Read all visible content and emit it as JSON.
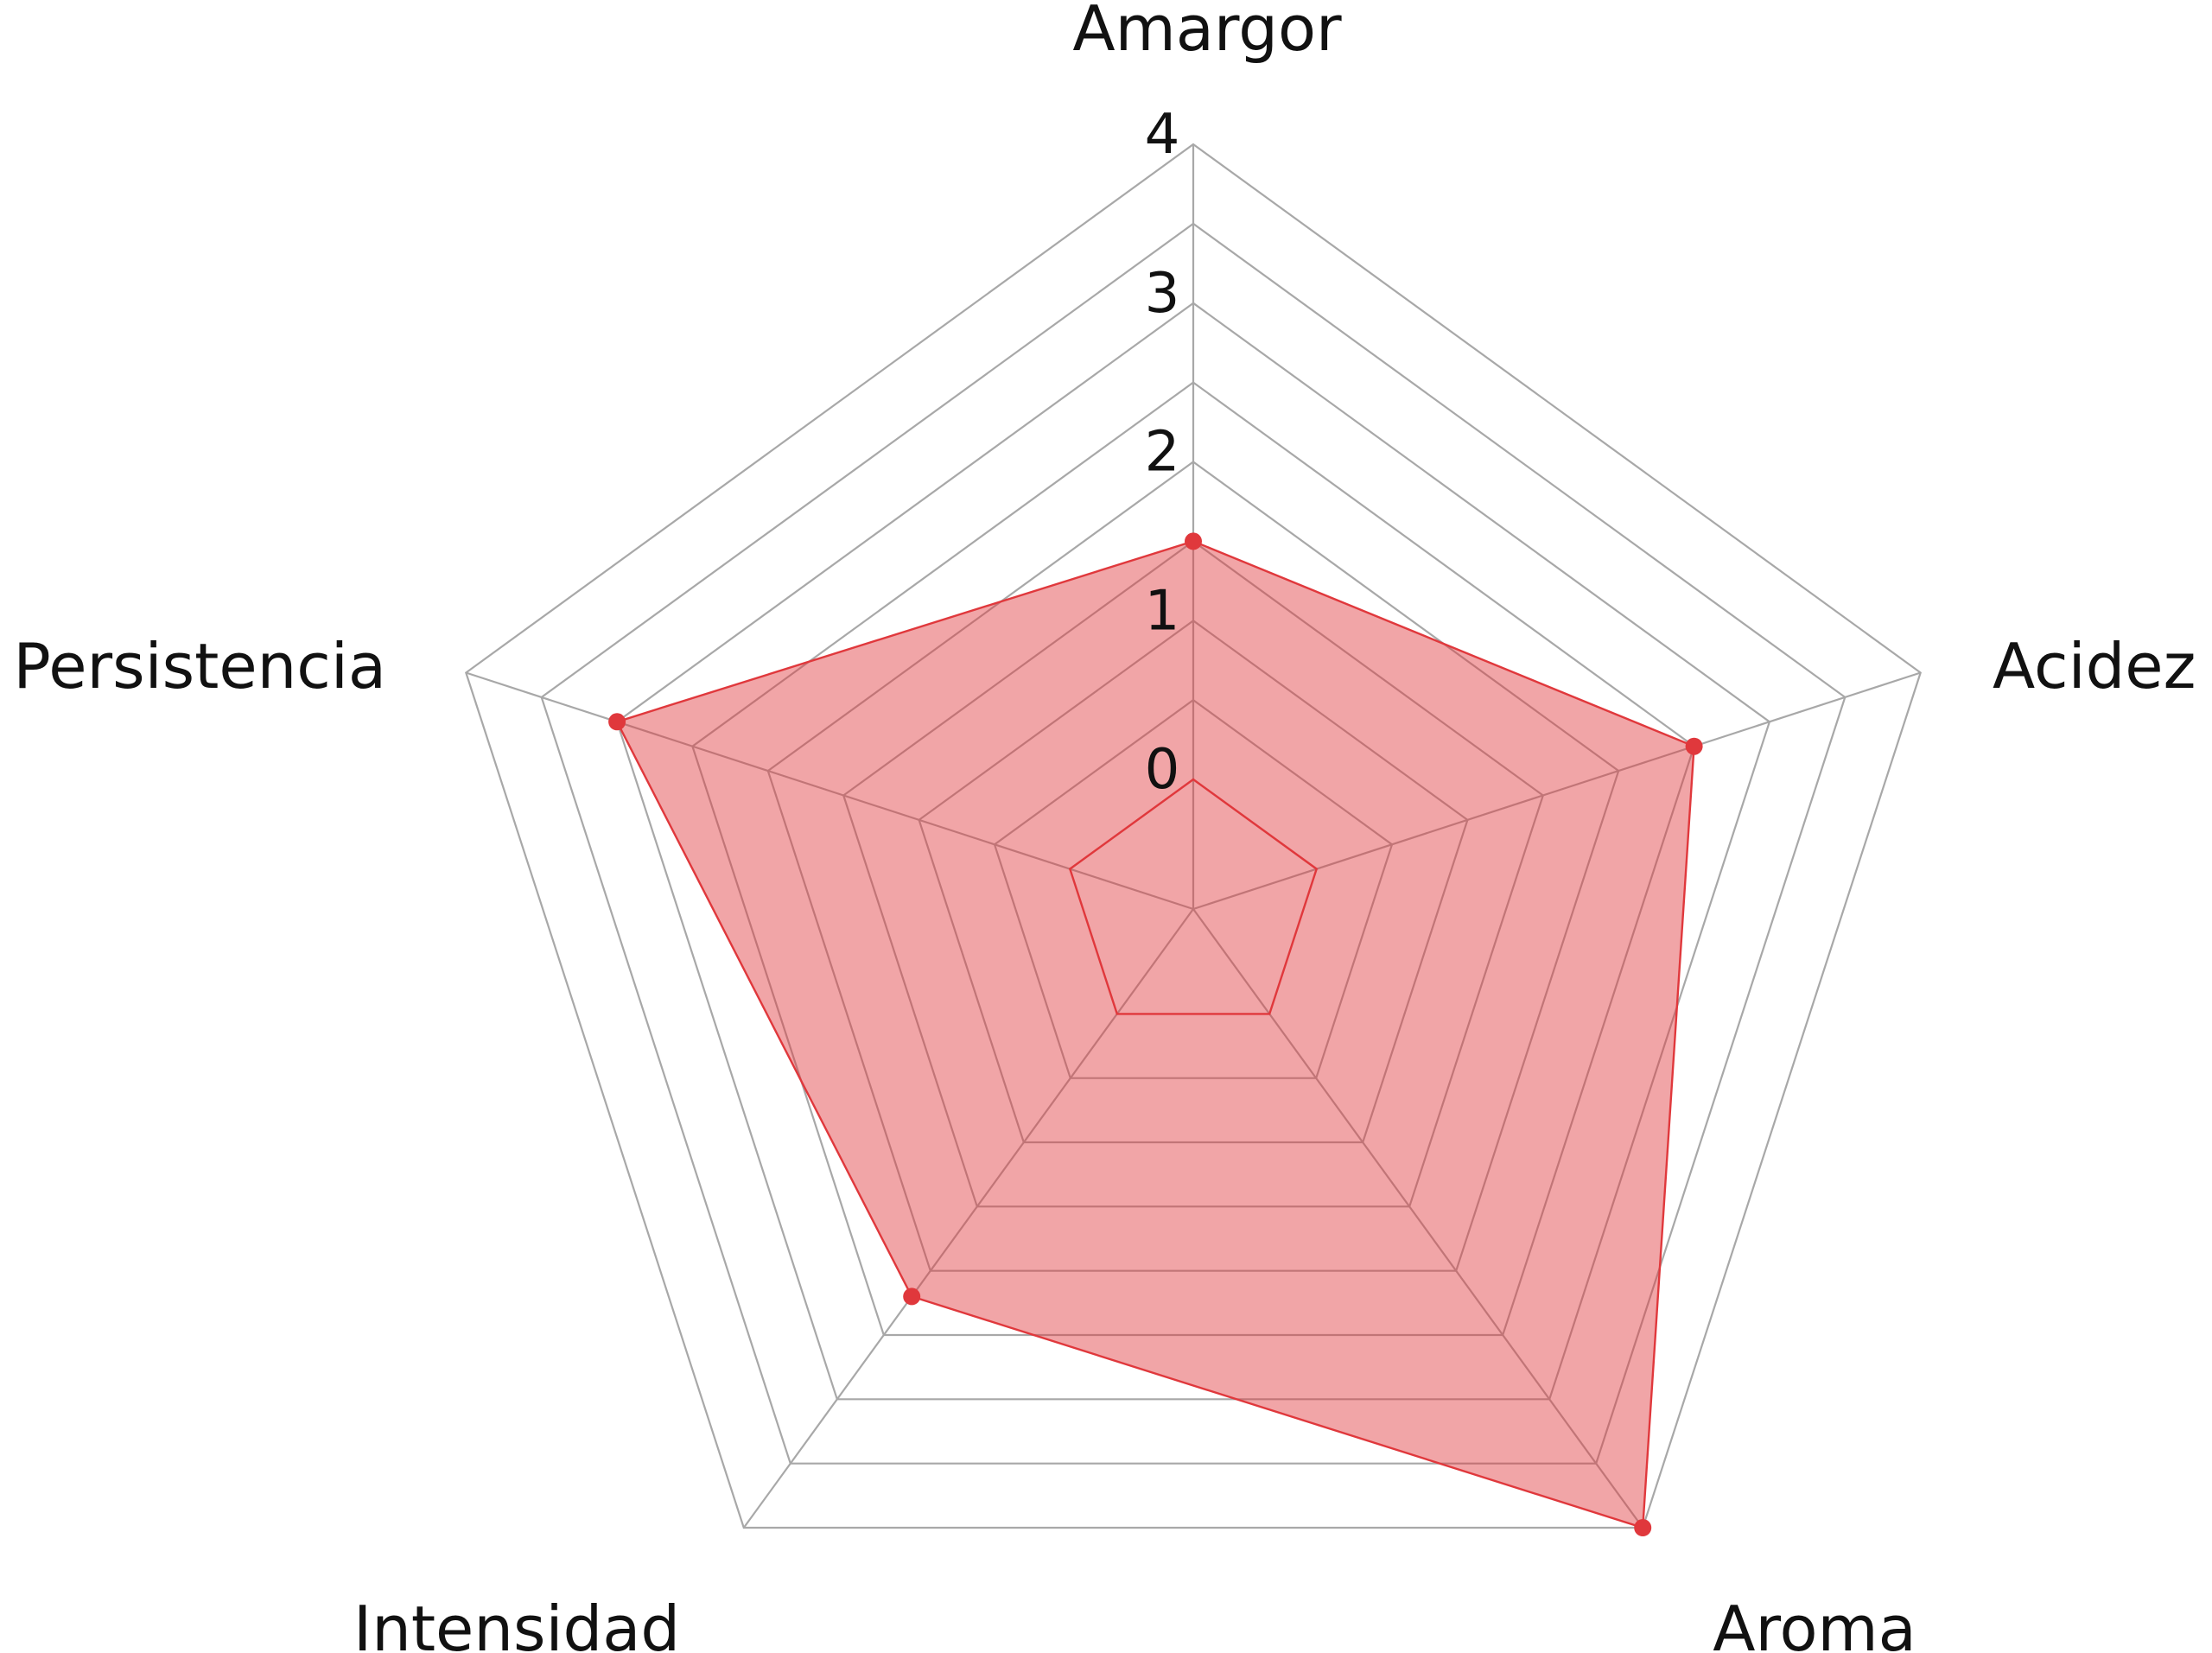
{
  "chart_data": {
    "type": "radar",
    "axes": [
      "Amargor",
      "Acidez",
      "Aroma",
      "Intensidad",
      "Persistencia"
    ],
    "rlim": [
      0,
      4
    ],
    "rticks": [
      "0",
      "1",
      "2",
      "3",
      "4"
    ],
    "series": [
      {
        "values": [
          1.5,
          2.5,
          4.0,
          2.2,
          3.0
        ],
        "color": "#e0383c"
      }
    ],
    "colors": {
      "grid": "#a8a8a8",
      "fill": "#e0383c",
      "line": "#e0383c"
    },
    "legend": "none",
    "title": "",
    "grid": true
  }
}
